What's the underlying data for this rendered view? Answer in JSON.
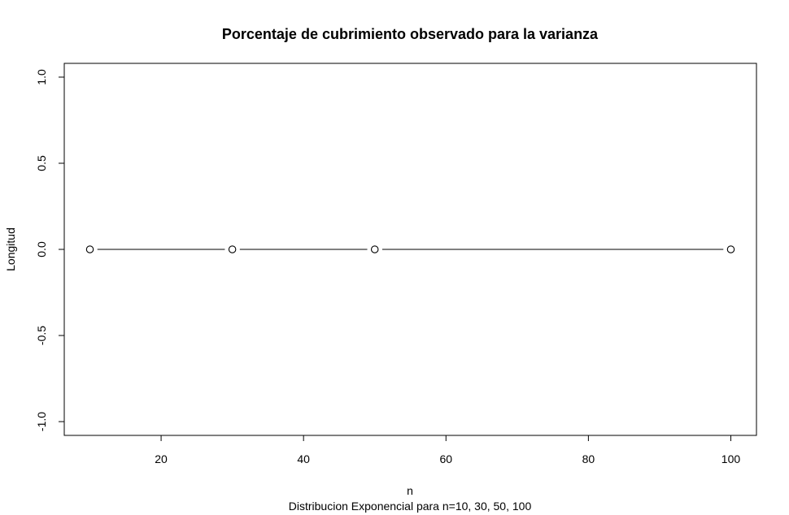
{
  "chart_data": {
    "type": "line",
    "title": "Porcentaje de cubrimiento observado para la varianza",
    "xlabel": "n",
    "ylabel": "Longitud",
    "subtitle": "Distribucion Exponencial para n=10, 30, 50, 100",
    "x": [
      10,
      30,
      50,
      100
    ],
    "series": [
      {
        "values": [
          0,
          0,
          0,
          0
        ]
      }
    ],
    "xlim": [
      6.4,
      103.6
    ],
    "ylim": [
      -1.08,
      1.08
    ],
    "xticks": [
      20,
      40,
      60,
      80,
      100
    ],
    "yticks": [
      -1.0,
      -0.5,
      0.0,
      0.5,
      1.0
    ],
    "xtick_labels": [
      "20",
      "40",
      "60",
      "80",
      "100"
    ],
    "ytick_labels": [
      "-1.0",
      "-0.5",
      "0.0",
      "0.5",
      "1.0"
    ],
    "grid": false,
    "markers": "open-circle"
  }
}
